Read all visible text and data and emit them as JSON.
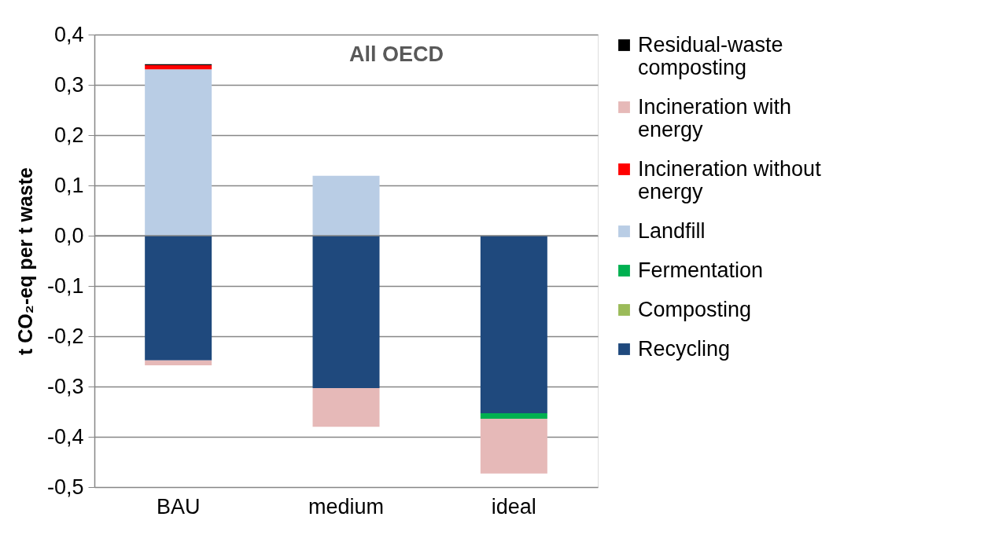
{
  "chart_data": {
    "type": "bar",
    "title": "All OECD",
    "ylabel": "t CO₂-eq per t waste",
    "categories": [
      "BAU",
      "medium",
      "ideal"
    ],
    "stacked": true,
    "series": [
      {
        "name": "Recycling",
        "color": "#1f497d",
        "values": [
          -0.248,
          -0.303,
          -0.353
        ]
      },
      {
        "name": "Composting",
        "color": "#9bbb59",
        "values": [
          0,
          0,
          0
        ]
      },
      {
        "name": "Fermentation",
        "color": "#00b050",
        "values": [
          0,
          0,
          -0.011
        ]
      },
      {
        "name": "Landfill",
        "color": "#b9cde5",
        "values": [
          0.331,
          0.119,
          0
        ]
      },
      {
        "name": "Incineration without energy",
        "color": "#ff0000",
        "values": [
          0.008,
          0,
          0
        ]
      },
      {
        "name": "Incineration with energy",
        "color": "#e6b9b8",
        "values": [
          -0.01,
          -0.077,
          -0.109
        ]
      },
      {
        "name": "Residual-waste composting",
        "color": "#000000",
        "values": [
          0.002,
          0,
          0
        ]
      }
    ],
    "ylim": [
      -0.5,
      0.4
    ],
    "yticks": [
      {
        "value": -0.5,
        "label": "-0,5"
      },
      {
        "value": -0.4,
        "label": "-0,4"
      },
      {
        "value": -0.3,
        "label": "-0,3"
      },
      {
        "value": -0.2,
        "label": "-0,2"
      },
      {
        "value": -0.1,
        "label": "-0,1"
      },
      {
        "value": 0,
        "label": "0,0"
      },
      {
        "value": 0.1,
        "label": "0,1"
      },
      {
        "value": 0.2,
        "label": "0,2"
      },
      {
        "value": 0.3,
        "label": "0,3"
      },
      {
        "value": 0.4,
        "label": "0,4"
      }
    ],
    "grid": "y",
    "legend": "right"
  }
}
